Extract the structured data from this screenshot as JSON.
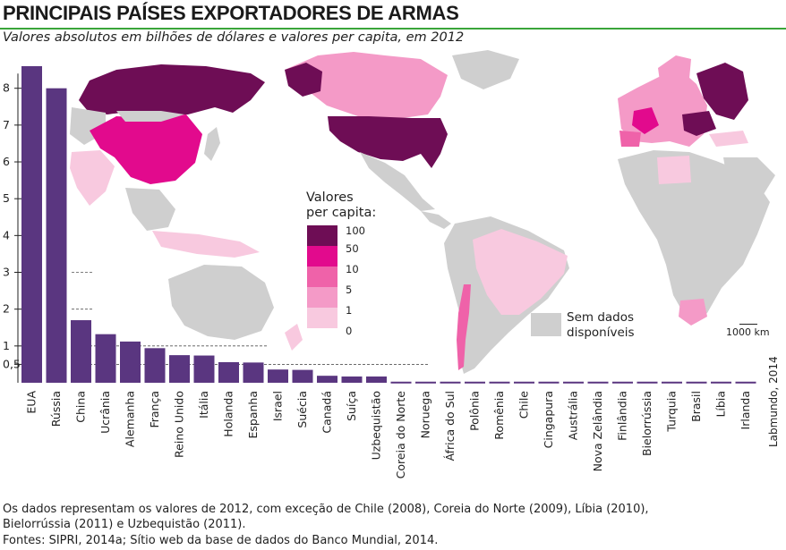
{
  "title": "PRINCIPAIS PAÍSES EXPORTADORES DE ARMAS",
  "subtitle": "Valores absolutos em bilhões de dólares e valores per capita, em 2012",
  "colors": {
    "bar": "#5a3680",
    "title_rule": "#3aa53a",
    "no_data": "#cfcfcf",
    "scale": [
      "#6e0d55",
      "#e20a8d",
      "#ef62a9",
      "#f49ac7",
      "#f8c9df"
    ]
  },
  "legend": {
    "title_line1": "Valores",
    "title_line2": "per capita:",
    "labels": [
      "100",
      "50",
      "10",
      "5",
      "1",
      "0"
    ],
    "no_data_line1": "Sem dados",
    "no_data_line2": "disponíveis"
  },
  "map": {
    "scale_label": "1000 km"
  },
  "credit": "Labmundo, 2014",
  "notes": {
    "line1": "Os dados representam os valores de 2012, com exceção de Chile (2008), Coreia do Norte (2009), Líbia (2010),",
    "line2": "Bielorrússia (2011) e Uzbequistão (2011).",
    "line3": "Fontes: SIPRI, 2014a; Sítio web da base de dados do Banco Mundial, 2014."
  },
  "chart_data": {
    "type": "bar",
    "title": "PRINCIPAIS PAÍSES EXPORTADORES DE ARMAS",
    "subtitle": "Valores absolutos em bilhões de dólares e valores per capita, em 2012",
    "xlabel": "",
    "ylabel": "",
    "ylim": [
      0,
      8.6
    ],
    "yticks": [
      0.5,
      1,
      2,
      3,
      4,
      5,
      6,
      7,
      8
    ],
    "ytick_labels": [
      "0,5",
      "1",
      "2",
      "3",
      "4",
      "5",
      "6",
      "7",
      "8"
    ],
    "grid": false,
    "categories": [
      "EUA",
      "Rússia",
      "China",
      "Ucrânia",
      "Alemanha",
      "França",
      "Reino Unido",
      "Itália",
      "Holanda",
      "Espanha",
      "Israel",
      "Suécia",
      "Canadá",
      "Suíça",
      "Uzbequistão",
      "Coreia do Norte",
      "Noruega",
      "África do Sul",
      "Polônia",
      "Romênia",
      "Chile",
      "Cingapura",
      "Austrália",
      "Nova Zelândia",
      "Finlândia",
      "Bielorrússia",
      "Turquia",
      "Brasil",
      "Líbia",
      "Irlanda"
    ],
    "values": [
      8.6,
      8.0,
      1.7,
      1.32,
      1.12,
      0.94,
      0.75,
      0.74,
      0.56,
      0.55,
      0.36,
      0.35,
      0.19,
      0.17,
      0.17,
      0.03,
      0.03,
      0.03,
      0.03,
      0.03,
      0.03,
      0.03,
      0.03,
      0.03,
      0.03,
      0.03,
      0.03,
      0.03,
      0.03,
      0.03
    ]
  }
}
